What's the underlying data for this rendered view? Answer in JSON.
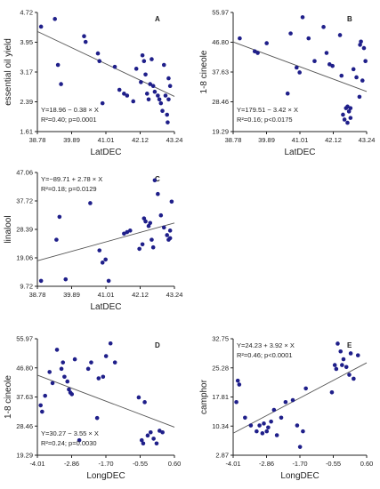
{
  "colors": {
    "point": "#1f1f8a",
    "fit_line": "#555555",
    "axis": "#222222",
    "text": "#222222"
  },
  "chart_data": [
    {
      "type": "scatter",
      "panel": "A",
      "xlabel": "LatDEC",
      "ylabel": "essential oil yield",
      "xticks": [
        "38.78",
        "39.89",
        "41.01",
        "42.12",
        "43.24"
      ],
      "yticks": [
        "1.61",
        "2.39",
        "3.17",
        "3.95",
        "4.72"
      ],
      "xlim": [
        38.78,
        43.24
      ],
      "ylim": [
        1.61,
        4.72
      ],
      "annotation": [
        "Y=18.96 − 0.38 × X",
        "R²=0.40; p=0.0001"
      ],
      "fit": {
        "intercept": 18.96,
        "slope": -0.38
      },
      "points": [
        [
          38.9,
          4.35
        ],
        [
          39.35,
          4.55
        ],
        [
          39.45,
          3.35
        ],
        [
          39.55,
          2.85
        ],
        [
          40.3,
          4.1
        ],
        [
          40.35,
          3.95
        ],
        [
          40.75,
          3.65
        ],
        [
          40.8,
          3.45
        ],
        [
          40.9,
          2.35
        ],
        [
          41.3,
          3.3
        ],
        [
          41.45,
          2.7
        ],
        [
          41.6,
          2.6
        ],
        [
          41.7,
          2.55
        ],
        [
          41.9,
          2.4
        ],
        [
          42.0,
          3.25
        ],
        [
          42.15,
          2.9
        ],
        [
          42.2,
          3.6
        ],
        [
          42.25,
          3.45
        ],
        [
          42.3,
          3.1
        ],
        [
          42.35,
          2.6
        ],
        [
          42.4,
          2.45
        ],
        [
          42.45,
          2.85
        ],
        [
          42.5,
          3.5
        ],
        [
          42.55,
          2.8
        ],
        [
          42.6,
          2.65
        ],
        [
          42.7,
          2.55
        ],
        [
          42.75,
          2.45
        ],
        [
          42.8,
          2.35
        ],
        [
          42.85,
          2.15
        ],
        [
          42.9,
          3.35
        ],
        [
          42.95,
          2.55
        ],
        [
          43.0,
          2.05
        ],
        [
          43.02,
          1.85
        ],
        [
          43.05,
          3.0
        ],
        [
          43.1,
          2.8
        ],
        [
          43.05,
          2.45
        ]
      ]
    },
    {
      "type": "scatter",
      "panel": "B",
      "xlabel": "LatDEC",
      "ylabel": "1-8 cineole",
      "xticks": [
        "38.78",
        "39.89",
        "41.01",
        "42.12",
        "43.24"
      ],
      "yticks": [
        "19.29",
        "28.46",
        "37.63",
        "46.80",
        "55.97"
      ],
      "xlim": [
        38.78,
        43.24
      ],
      "ylim": [
        19.29,
        55.97
      ],
      "annotation": [
        "Y=179.51 − 3.42 × X",
        "R²=0.16; p<0.0175"
      ],
      "fit": {
        "intercept": 179.51,
        "slope": -3.42
      },
      "points": [
        [
          39.0,
          48.0
        ],
        [
          39.5,
          44.0
        ],
        [
          39.6,
          43.5
        ],
        [
          39.9,
          46.5
        ],
        [
          40.6,
          31.0
        ],
        [
          40.7,
          49.5
        ],
        [
          40.9,
          39.0
        ],
        [
          41.0,
          37.5
        ],
        [
          41.1,
          54.5
        ],
        [
          41.3,
          48.0
        ],
        [
          41.5,
          41.0
        ],
        [
          41.8,
          51.5
        ],
        [
          41.9,
          43.5
        ],
        [
          42.0,
          40.0
        ],
        [
          42.1,
          39.5
        ],
        [
          42.35,
          49.0
        ],
        [
          42.4,
          36.5
        ],
        [
          42.45,
          24.5
        ],
        [
          42.5,
          23.0
        ],
        [
          42.55,
          26.5
        ],
        [
          42.6,
          27.0
        ],
        [
          42.6,
          22.0
        ],
        [
          42.65,
          25.5
        ],
        [
          42.7,
          23.5
        ],
        [
          42.7,
          26.5
        ],
        [
          42.8,
          38.5
        ],
        [
          42.9,
          36.0
        ],
        [
          43.0,
          30.0
        ],
        [
          43.02,
          46.0
        ],
        [
          43.05,
          47.0
        ],
        [
          43.1,
          35.0
        ],
        [
          43.15,
          45.0
        ],
        [
          43.2,
          41.0
        ]
      ]
    },
    {
      "type": "scatter",
      "panel": "C",
      "xlabel": "LatDEC",
      "ylabel": "linalool",
      "xticks": [
        "38.78",
        "39.89",
        "41.01",
        "42.12",
        "43.24"
      ],
      "yticks": [
        "9.72",
        "19.06",
        "28.39",
        "37.72",
        "47.06"
      ],
      "xlim": [
        38.78,
        43.24
      ],
      "ylim": [
        9.72,
        47.06
      ],
      "annotation": [
        "Y=−89.71 + 2.78 × X",
        "R²=0.18; p=0.0129"
      ],
      "fit": {
        "intercept": -89.71,
        "slope": 2.78
      },
      "points": [
        [
          38.9,
          11.5
        ],
        [
          39.4,
          25.0
        ],
        [
          39.5,
          32.5
        ],
        [
          39.7,
          12.0
        ],
        [
          40.5,
          37.0
        ],
        [
          40.8,
          21.5
        ],
        [
          40.9,
          17.5
        ],
        [
          41.0,
          18.5
        ],
        [
          41.1,
          11.5
        ],
        [
          41.6,
          27.0
        ],
        [
          41.7,
          27.5
        ],
        [
          41.8,
          28.0
        ],
        [
          42.1,
          22.0
        ],
        [
          42.2,
          23.5
        ],
        [
          42.25,
          32.0
        ],
        [
          42.3,
          31.0
        ],
        [
          42.4,
          29.5
        ],
        [
          42.45,
          30.5
        ],
        [
          42.5,
          25.0
        ],
        [
          42.55,
          22.5
        ],
        [
          42.6,
          44.5
        ],
        [
          42.7,
          40.0
        ],
        [
          42.8,
          33.0
        ],
        [
          42.9,
          29.0
        ],
        [
          43.0,
          26.5
        ],
        [
          43.05,
          25.0
        ],
        [
          43.1,
          28.0
        ],
        [
          43.1,
          25.5
        ],
        [
          43.15,
          37.5
        ]
      ]
    },
    {
      "type": "scatter",
      "panel": "D",
      "xlabel": "LongDEC",
      "ylabel": "1-8 cineole",
      "xticks": [
        "-4.01",
        "-2.86",
        "-1.70",
        "-0.55",
        "0.60"
      ],
      "yticks": [
        "19.29",
        "28.46",
        "37.63",
        "46.80",
        "55.97"
      ],
      "xlim": [
        -4.01,
        0.6
      ],
      "ylim": [
        19.29,
        55.97
      ],
      "annotation": [
        "Y=30.27 − 3.55 × X",
        "R²=0.24; p=0.0030"
      ],
      "fit": {
        "intercept": 30.27,
        "slope": -3.55
      },
      "points": [
        [
          -3.9,
          35.0
        ],
        [
          -3.85,
          33.0
        ],
        [
          -3.75,
          38.0
        ],
        [
          -3.6,
          45.5
        ],
        [
          -3.5,
          42.0
        ],
        [
          -3.35,
          52.5
        ],
        [
          -3.2,
          46.5
        ],
        [
          -3.15,
          48.5
        ],
        [
          -3.1,
          44.0
        ],
        [
          -3.0,
          42.5
        ],
        [
          -2.95,
          40.0
        ],
        [
          -2.9,
          39.0
        ],
        [
          -2.85,
          38.5
        ],
        [
          -2.75,
          49.5
        ],
        [
          -2.6,
          24.0
        ],
        [
          -2.3,
          46.5
        ],
        [
          -2.2,
          48.5
        ],
        [
          -2.0,
          31.0
        ],
        [
          -1.95,
          43.5
        ],
        [
          -1.8,
          44.0
        ],
        [
          -1.7,
          50.5
        ],
        [
          -1.55,
          54.5
        ],
        [
          -1.4,
          48.5
        ],
        [
          -0.6,
          37.5
        ],
        [
          -0.5,
          24.0
        ],
        [
          -0.45,
          23.0
        ],
        [
          -0.4,
          36.0
        ],
        [
          -0.3,
          25.5
        ],
        [
          -0.2,
          26.5
        ],
        [
          -0.1,
          24.5
        ],
        [
          0.0,
          23.0
        ],
        [
          0.1,
          27.0
        ],
        [
          0.2,
          26.5
        ]
      ]
    },
    {
      "type": "scatter",
      "panel": "E",
      "xlabel": "LongDEC",
      "ylabel": "camphor",
      "xticks": [
        "-4.01",
        "-2.86",
        "-1.70",
        "-0.55",
        "0.60"
      ],
      "yticks": [
        "2.87",
        "10.34",
        "17.81",
        "25.28",
        "32.75"
      ],
      "xlim": [
        -4.01,
        0.6
      ],
      "ylim": [
        2.87,
        32.75
      ],
      "annotation": [
        "Y=24.23 + 3.92 × X",
        "R²=0.46; p<0.0001"
      ],
      "fit": {
        "intercept": 24.23,
        "slope": 3.92
      },
      "points": [
        [
          -3.9,
          16.5
        ],
        [
          -3.85,
          22.0
        ],
        [
          -3.8,
          21.0
        ],
        [
          -3.6,
          12.5
        ],
        [
          -3.4,
          10.5
        ],
        [
          -3.2,
          9.0
        ],
        [
          -3.1,
          10.5
        ],
        [
          -3.0,
          8.5
        ],
        [
          -2.95,
          11.0
        ],
        [
          -2.85,
          9.0
        ],
        [
          -2.8,
          10.0
        ],
        [
          -2.7,
          11.5
        ],
        [
          -2.6,
          14.5
        ],
        [
          -2.5,
          8.0
        ],
        [
          -2.35,
          12.5
        ],
        [
          -2.2,
          16.5
        ],
        [
          -1.95,
          17.0
        ],
        [
          -1.8,
          10.5
        ],
        [
          -1.7,
          5.0
        ],
        [
          -1.6,
          9.0
        ],
        [
          -1.5,
          20.0
        ],
        [
          -0.6,
          19.0
        ],
        [
          -0.5,
          26.0
        ],
        [
          -0.45,
          25.0
        ],
        [
          -0.4,
          31.5
        ],
        [
          -0.3,
          29.5
        ],
        [
          -0.25,
          26.0
        ],
        [
          -0.2,
          27.5
        ],
        [
          -0.1,
          25.5
        ],
        [
          0.0,
          23.5
        ],
        [
          0.05,
          29.0
        ],
        [
          0.15,
          22.5
        ],
        [
          0.3,
          28.5
        ]
      ]
    }
  ]
}
